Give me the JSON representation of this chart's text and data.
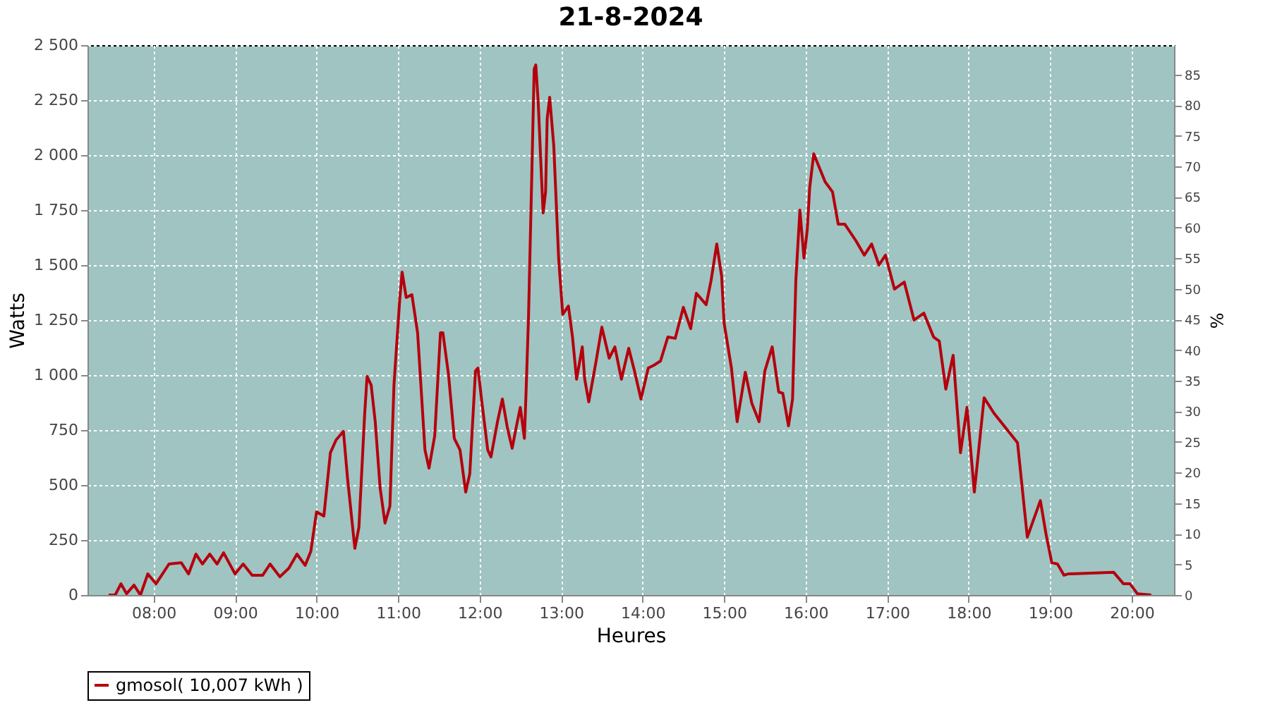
{
  "chart_data": {
    "type": "line",
    "title": "21-8-2024",
    "xlabel": "Heures",
    "ylabel": "Watts",
    "y2label": "%",
    "xlim": [
      7.19,
      20.52
    ],
    "xticks": [
      {
        "value": 8,
        "label": "08:00"
      },
      {
        "value": 9,
        "label": "09:00"
      },
      {
        "value": 10,
        "label": "10:00"
      },
      {
        "value": 11,
        "label": "11:00"
      },
      {
        "value": 12,
        "label": "12:00"
      },
      {
        "value": 13,
        "label": "13:00"
      },
      {
        "value": 14,
        "label": "14:00"
      },
      {
        "value": 15,
        "label": "15:00"
      },
      {
        "value": 16,
        "label": "16:00"
      },
      {
        "value": 17,
        "label": "17:00"
      },
      {
        "value": 18,
        "label": "18:00"
      },
      {
        "value": 19,
        "label": "19:00"
      },
      {
        "value": 20,
        "label": "20:00"
      }
    ],
    "ylim": [
      0,
      2500
    ],
    "yticks": [
      0,
      250,
      500,
      750,
      {
        "value": 1000,
        "label": "1 000"
      },
      {
        "value": 1250,
        "label": "1 250"
      },
      {
        "value": 1500,
        "label": "1 500"
      },
      {
        "value": 1750,
        "label": "1 750"
      },
      {
        "value": 2000,
        "label": "2 000"
      },
      {
        "value": 2250,
        "label": "2 250"
      },
      {
        "value": 2500,
        "label": "2 500"
      }
    ],
    "y2lim": [
      0,
      89.8
    ],
    "y2ticks": [
      0,
      5,
      10,
      15,
      20,
      25,
      30,
      35,
      40,
      45,
      50,
      55,
      60,
      65,
      70,
      75,
      80,
      85
    ],
    "grid": true,
    "legend": "bottom",
    "series": [
      {
        "name": "gmosol( 10,007 kWh )",
        "color": "#b5000d",
        "x": [
          7.45,
          7.53,
          7.6,
          7.67,
          7.76,
          7.84,
          7.93,
          8.03,
          8.19,
          8.34,
          8.43,
          8.52,
          8.6,
          8.69,
          8.78,
          8.86,
          9.0,
          9.1,
          9.21,
          9.34,
          9.43,
          9.55,
          9.66,
          9.76,
          9.86,
          9.93,
          10.0,
          10.09,
          10.17,
          10.24,
          10.33,
          10.38,
          10.47,
          10.52,
          10.59,
          10.62,
          10.67,
          10.72,
          10.78,
          10.84,
          10.9,
          10.95,
          11.02,
          11.05,
          11.1,
          11.17,
          11.24,
          11.33,
          11.38,
          11.45,
          11.52,
          11.55,
          11.62,
          11.69,
          11.76,
          11.83,
          11.88,
          11.95,
          11.98,
          12.03,
          12.1,
          12.14,
          12.22,
          12.28,
          12.34,
          12.4,
          12.45,
          12.5,
          12.55,
          12.57,
          12.6,
          12.64,
          12.67,
          12.69,
          12.72,
          12.76,
          12.78,
          12.81,
          12.83,
          12.86,
          12.91,
          12.97,
          13.02,
          13.09,
          13.14,
          13.19,
          13.26,
          13.29,
          13.34,
          13.43,
          13.5,
          13.59,
          13.66,
          13.74,
          13.83,
          13.9,
          13.98,
          14.07,
          14.14,
          14.22,
          14.31,
          14.4,
          14.5,
          14.59,
          14.66,
          14.78,
          14.84,
          14.91,
          14.97,
          15.0,
          15.09,
          15.16,
          15.26,
          15.34,
          15.43,
          15.5,
          15.59,
          15.67,
          15.72,
          15.79,
          15.84,
          15.88,
          15.93,
          15.98,
          16.02,
          16.05,
          16.1,
          16.24,
          16.33,
          16.4,
          16.48,
          16.62,
          16.72,
          16.81,
          16.9,
          16.98,
          17.09,
          17.21,
          17.33,
          17.45,
          17.57,
          17.64,
          17.72,
          17.81,
          17.9,
          17.98,
          18.07,
          18.19,
          18.31,
          18.6,
          18.72,
          18.88,
          18.95,
          19.02,
          19.09,
          19.17,
          19.22,
          19.78,
          19.9,
          19.98,
          20.07,
          20.24
        ],
        "values": [
          0,
          0,
          51,
          6,
          45,
          0,
          96,
          51,
          141,
          147,
          96,
          186,
          141,
          186,
          141,
          192,
          96,
          141,
          90,
          90,
          141,
          83,
          122,
          186,
          135,
          199,
          378,
          359,
          647,
          705,
          744,
          532,
          212,
          308,
          820,
          994,
          955,
          788,
          487,
          327,
          404,
          955,
          1340,
          1468,
          1353,
          1365,
          1192,
          660,
          577,
          724,
          1192,
          1192,
          1000,
          712,
          660,
          468,
          551,
          1019,
          1032,
          872,
          660,
          628,
          788,
          891,
          763,
          667,
          763,
          853,
          712,
          917,
          1256,
          1897,
          2391,
          2410,
          2237,
          1897,
          1737,
          1833,
          2167,
          2263,
          2045,
          1532,
          1276,
          1314,
          1173,
          981,
          1128,
          981,
          878,
          1064,
          1218,
          1077,
          1128,
          981,
          1122,
          1019,
          891,
          1032,
          1045,
          1064,
          1173,
          1167,
          1308,
          1211,
          1372,
          1320,
          1429,
          1596,
          1449,
          1237,
          1032,
          788,
          1013,
          872,
          788,
          1019,
          1128,
          923,
          917,
          769,
          891,
          1429,
          1750,
          1532,
          1660,
          1852,
          2006,
          1878,
          1833,
          1686,
          1686,
          1609,
          1545,
          1596,
          1500,
          1545,
          1391,
          1423,
          1250,
          1282,
          1173,
          1154,
          936,
          1090,
          647,
          853,
          468,
          897,
          827,
          692,
          263,
          429,
          276,
          147,
          141,
          90,
          96,
          103,
          51,
          51,
          6,
          0
        ]
      }
    ]
  }
}
